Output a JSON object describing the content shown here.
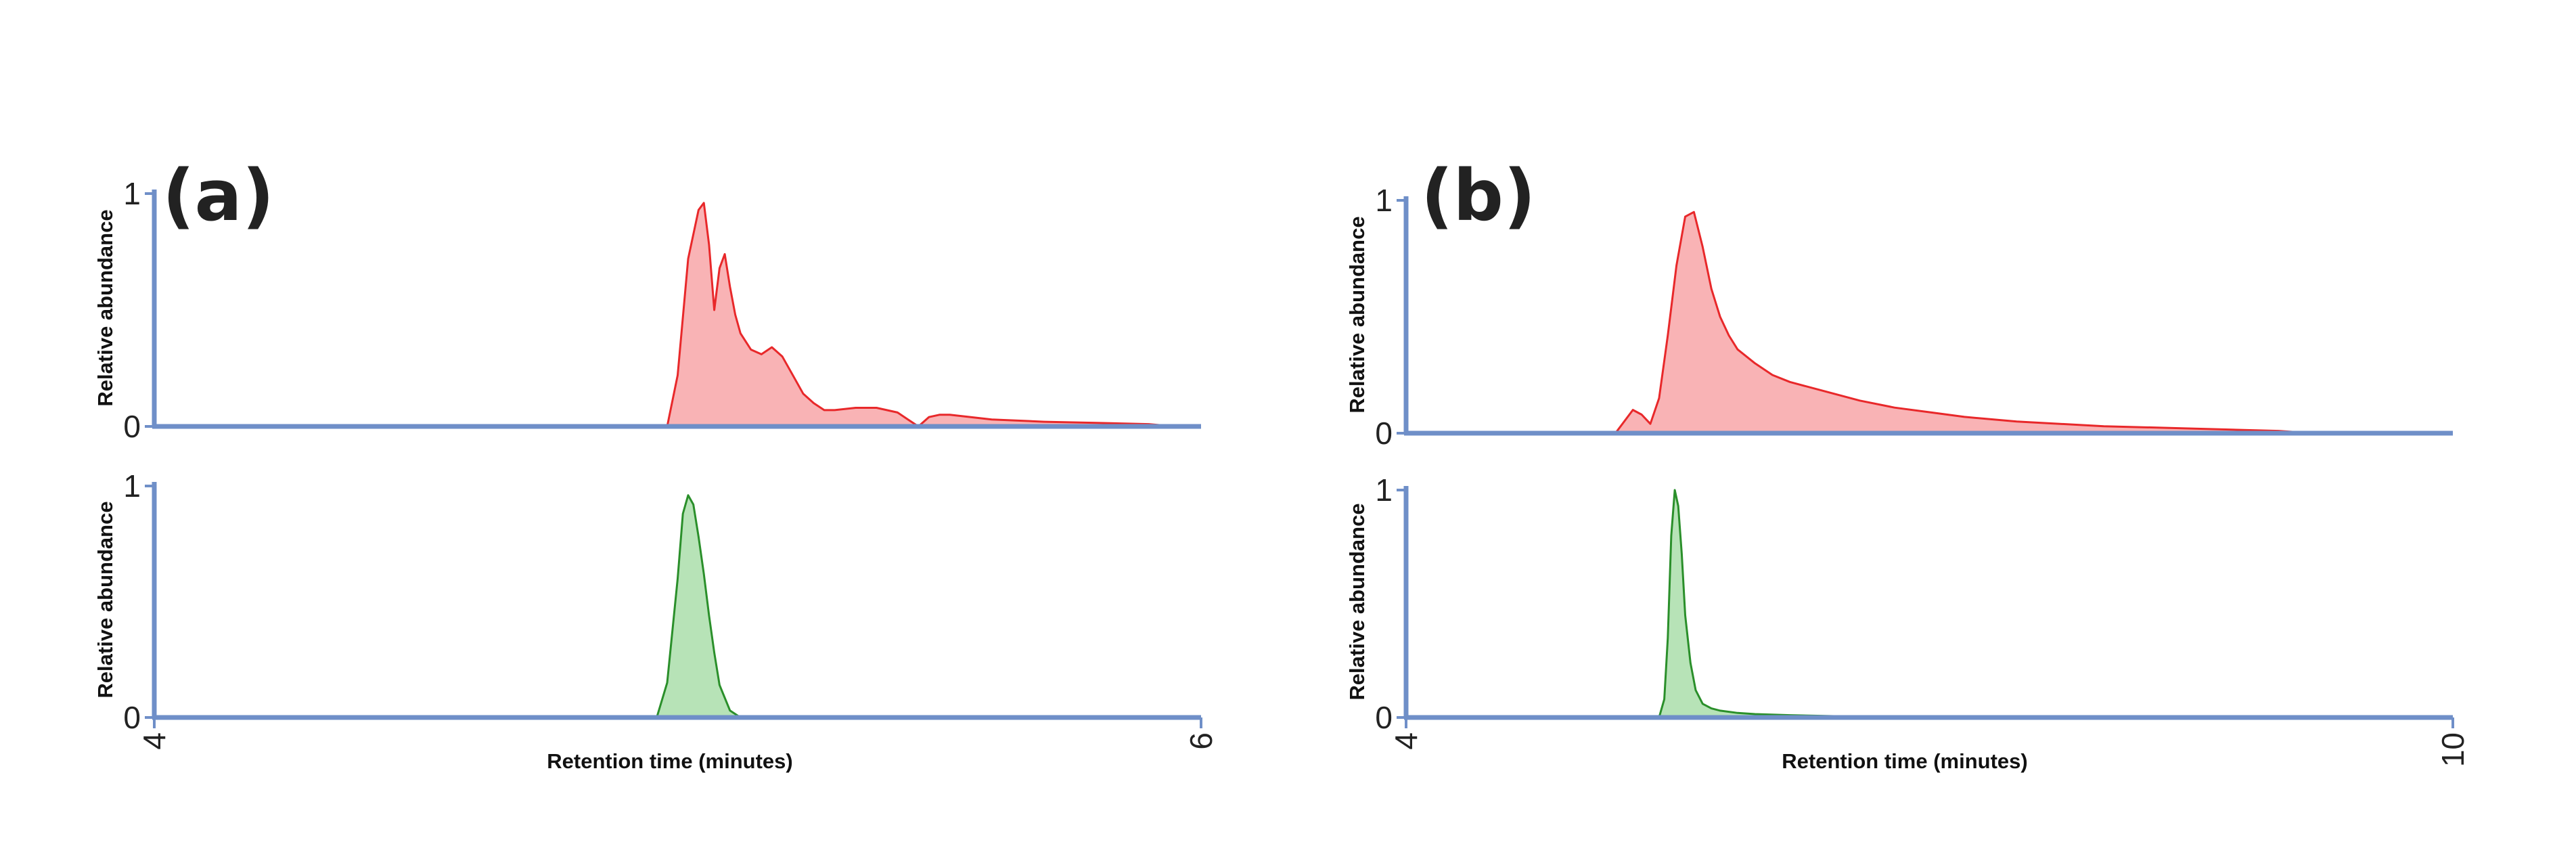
{
  "colors": {
    "axis": "#6f8fc8",
    "top_series": "#e8282a",
    "top_fill": "#f9b3b5",
    "bottom_series": "#2a8f2a",
    "bottom_fill": "#b7e3b7"
  },
  "chart_data": [
    {
      "panel_label": "(a)",
      "type": "area",
      "xlabel": "Retention time (minutes)",
      "xlim": [
        4,
        6
      ],
      "x_ticks": [
        "4",
        "6"
      ],
      "subplots": [
        {
          "type": "area",
          "ylabel": "Relative abundance",
          "ylim": [
            0,
            1
          ],
          "y_ticks": [
            "0",
            "1"
          ],
          "series": [
            {
              "x": [
                4.0,
                4.98,
                5.0,
                5.02,
                5.04,
                5.05,
                5.06,
                5.07,
                5.08,
                5.09,
                5.1,
                5.11,
                5.12,
                5.14,
                5.16,
                5.18,
                5.2,
                5.22,
                5.24,
                5.26,
                5.28,
                5.3,
                5.34,
                5.38,
                5.42,
                5.44,
                5.46,
                5.48,
                5.5,
                5.52,
                5.56,
                5.6,
                5.7,
                5.8,
                5.9,
                5.95,
                6.0
              ],
              "y": [
                0,
                0,
                0.22,
                0.72,
                0.93,
                0.96,
                0.78,
                0.5,
                0.68,
                0.74,
                0.6,
                0.48,
                0.4,
                0.33,
                0.31,
                0.34,
                0.3,
                0.22,
                0.14,
                0.1,
                0.07,
                0.07,
                0.08,
                0.08,
                0.06,
                0.03,
                0.0,
                0.04,
                0.05,
                0.05,
                0.04,
                0.03,
                0.02,
                0.015,
                0.01,
                0.0,
                0.0
              ]
            }
          ]
        },
        {
          "type": "area",
          "ylabel": "Relative abundance",
          "ylim": [
            0,
            1
          ],
          "y_ticks": [
            "0",
            "1"
          ],
          "series": [
            {
              "x": [
                4.0,
                4.96,
                4.98,
                5.0,
                5.01,
                5.02,
                5.03,
                5.04,
                5.05,
                5.06,
                5.07,
                5.08,
                5.1,
                5.12,
                6.0
              ],
              "y": [
                0,
                0,
                0.15,
                0.6,
                0.88,
                0.96,
                0.92,
                0.78,
                0.62,
                0.44,
                0.28,
                0.14,
                0.03,
                0,
                0
              ]
            }
          ]
        }
      ]
    },
    {
      "panel_label": "(b)",
      "type": "area",
      "xlabel": "Retention time (minutes)",
      "xlim": [
        4,
        10
      ],
      "x_ticks": [
        "4",
        "10"
      ],
      "subplots": [
        {
          "type": "area",
          "ylabel": "Relative abundance",
          "ylim": [
            0,
            1
          ],
          "y_ticks": [
            "0",
            "1"
          ],
          "series": [
            {
              "x": [
                4.0,
                5.2,
                5.3,
                5.35,
                5.4,
                5.45,
                5.5,
                5.55,
                5.6,
                5.65,
                5.7,
                5.75,
                5.8,
                5.85,
                5.9,
                6.0,
                6.1,
                6.2,
                6.4,
                6.6,
                6.8,
                7.0,
                7.2,
                7.5,
                8.0,
                8.5,
                9.0,
                9.2,
                10.0
              ],
              "y": [
                0,
                0,
                0.1,
                0.08,
                0.04,
                0.15,
                0.42,
                0.72,
                0.93,
                0.95,
                0.8,
                0.62,
                0.5,
                0.42,
                0.36,
                0.3,
                0.25,
                0.22,
                0.18,
                0.14,
                0.11,
                0.09,
                0.07,
                0.05,
                0.03,
                0.02,
                0.01,
                0.0,
                0.0
              ]
            }
          ]
        },
        {
          "type": "area",
          "ylabel": "Relative abundance",
          "ylim": [
            0,
            1
          ],
          "y_ticks": [
            "0",
            "1"
          ],
          "series": [
            {
              "x": [
                4.0,
                5.45,
                5.48,
                5.5,
                5.52,
                5.54,
                5.56,
                5.58,
                5.6,
                5.63,
                5.66,
                5.7,
                5.75,
                5.8,
                5.9,
                6.0,
                6.2,
                6.5,
                7.0,
                10.0
              ],
              "y": [
                0,
                0,
                0.08,
                0.35,
                0.8,
                1.0,
                0.93,
                0.72,
                0.45,
                0.24,
                0.12,
                0.06,
                0.04,
                0.03,
                0.02,
                0.015,
                0.01,
                0.005,
                0,
                0
              ]
            }
          ]
        }
      ]
    }
  ]
}
